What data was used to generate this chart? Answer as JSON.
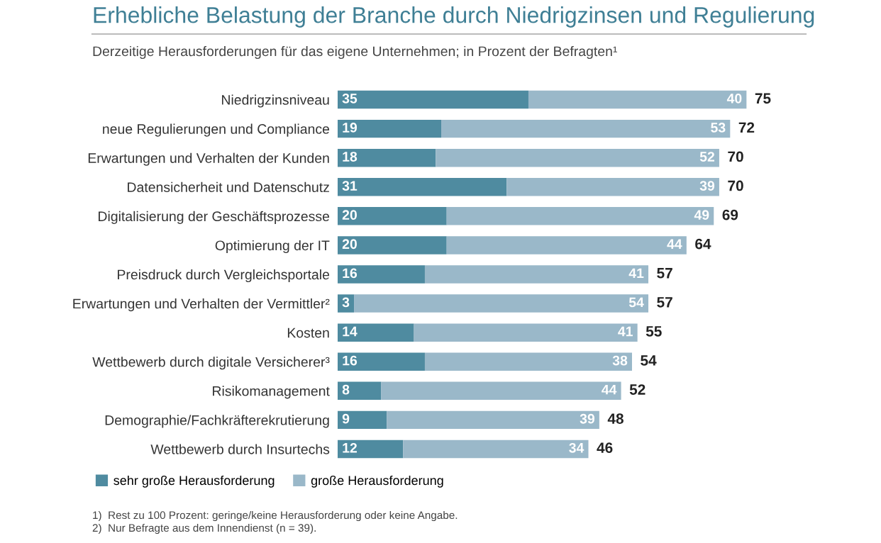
{
  "chart_data": {
    "type": "bar",
    "orientation": "horizontal",
    "stacked": true,
    "title": "Erhebliche Belastung der Branche durch Niedrigzinsen und Regulierung",
    "subtitle": "Derzeitige Herausforderungen für das eigene Unternehmen; in Prozent der Befragten¹",
    "categories": [
      "Niedrigzinsniveau",
      "neue Regulierungen und Compliance",
      "Erwartungen und Verhalten der Kunden",
      "Datensicherheit und Datenschutz",
      "Digitalisierung der Geschäftsprozesse",
      "Optimierung der IT",
      "Preisdruck durch Vergleichsportale",
      "Erwartungen und Verhalten der Vermittler²",
      "Kosten",
      "Wettbewerb durch digitale Versicherer³",
      "Risikomanagement",
      "Demographie/Fachkräfterekrutierung",
      "Wettbewerb durch Insurtechs"
    ],
    "series": [
      {
        "name": "sehr große Herausforderung",
        "color": "#4f8ba0",
        "values": [
          35,
          19,
          18,
          31,
          20,
          20,
          16,
          3,
          14,
          16,
          8,
          9,
          12
        ]
      },
      {
        "name": "große Herausforderung",
        "color": "#9ab8c9",
        "values": [
          40,
          53,
          52,
          39,
          49,
          44,
          41,
          54,
          41,
          38,
          44,
          39,
          34
        ]
      }
    ],
    "data_labels": true,
    "totals": [
      "75",
      "72",
      "70",
      "70",
      "69",
      "64",
      "57",
      "57",
      "55",
      "54",
      "52",
      "48",
      "46"
    ],
    "legend": "bottom left",
    "annotations": [
      "1)  Rest zu 100 Prozent: geringe/keine Herausforderung oder keine Angabe.",
      "2)  Nur Befragte aus dem Innendienst (n = 39)."
    ]
  }
}
